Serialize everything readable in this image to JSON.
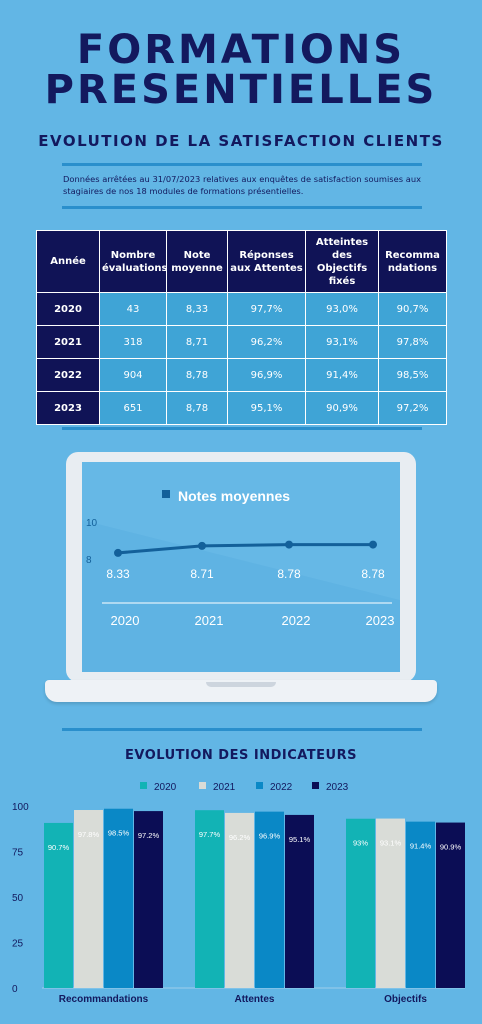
{
  "header": {
    "title_line1": "FORMATIONS",
    "title_line2": "PRESENTIELLES",
    "subtitle": "EVOLUTION DE LA SATISFACTION CLIENTS",
    "note": "Données arrêtées au 31/07/2023 relatives aux enquêtes de satisfaction soumises aux stagiaires de nos 18 modules de formations présentielles."
  },
  "table": {
    "headers": [
      "Année",
      "Nombre évaluations",
      "Note moyenne",
      "Réponses aux Attentes",
      "Atteintes des Objectifs fixés",
      "Recomma ndations"
    ],
    "rows": [
      [
        "2020",
        "43",
        "8,33",
        "97,7%",
        "93,0%",
        "90,7%"
      ],
      [
        "2021",
        "318",
        "8,71",
        "96,2%",
        "93,1%",
        "97,8%"
      ],
      [
        "2022",
        "904",
        "8,78",
        "96,9%",
        "91,4%",
        "98,5%"
      ],
      [
        "2023",
        "651",
        "8,78",
        "95,1%",
        "90,9%",
        "97,2%"
      ]
    ]
  },
  "chart_data": [
    {
      "type": "line",
      "title": "Notes moyennes",
      "x": [
        "2020",
        "2021",
        "2022",
        "2023"
      ],
      "series": [
        {
          "name": "Notes moyennes",
          "values": [
            8.33,
            8.71,
            8.78,
            8.78
          ]
        }
      ],
      "data_labels": [
        "8.33",
        "8.71",
        "8.78",
        "8.78"
      ],
      "y_ticks": [
        "10",
        "8"
      ],
      "ylim": [
        7,
        11
      ],
      "color": "#13609a"
    },
    {
      "type": "bar",
      "title": "EVOLUTION DES INDICATEURS",
      "categories": [
        "Recommandations",
        "Attentes",
        "Objectifs"
      ],
      "series": [
        {
          "name": "2020",
          "color": "#12b3b5",
          "values": [
            90.7,
            97.7,
            93
          ],
          "labels": [
            "90.7%",
            "97.7%",
            "93%"
          ]
        },
        {
          "name": "2021",
          "color": "#d9dcd7",
          "values": [
            97.8,
            96.2,
            93.1
          ],
          "labels": [
            "97.8%",
            "96.2%",
            "93.1%"
          ]
        },
        {
          "name": "2022",
          "color": "#0a88c6",
          "values": [
            98.5,
            96.9,
            91.4
          ],
          "labels": [
            "98.5%",
            "96.9%",
            "91.4%"
          ]
        },
        {
          "name": "2023",
          "color": "#0b0d55",
          "values": [
            97.2,
            95.1,
            90.9
          ],
          "labels": [
            "97.2%",
            "95.1%",
            "90.9%"
          ]
        }
      ],
      "y_ticks": [
        100,
        75,
        50,
        25,
        0
      ],
      "ylim": [
        0,
        100
      ],
      "legend": "top-center"
    }
  ]
}
